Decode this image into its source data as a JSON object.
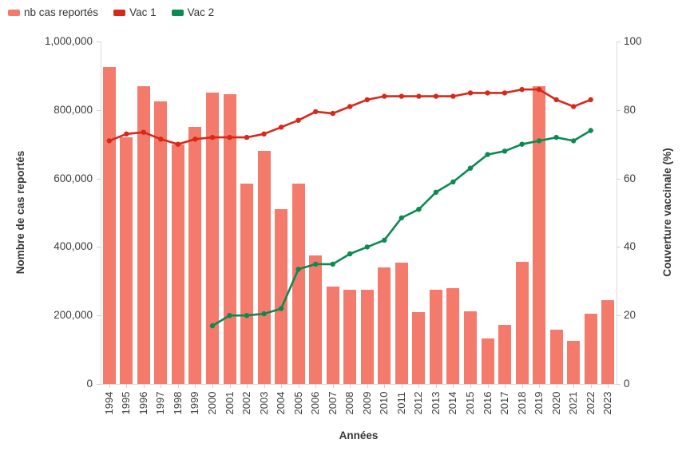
{
  "chart_data": {
    "type": "bar+line (dual y-axis)",
    "title": "",
    "xlabel": "Années",
    "ylabel_left": "Nombre de cas reportés",
    "ylabel_right": "Couverture vaccinale (%)",
    "grid": false,
    "legend_position": "top-left",
    "categories": [
      "1994",
      "1995",
      "1996",
      "1997",
      "1998",
      "1999",
      "2000",
      "2001",
      "2002",
      "2003",
      "2004",
      "2005",
      "2006",
      "2007",
      "2008",
      "2009",
      "2010",
      "2011",
      "2012",
      "2013",
      "2014",
      "2015",
      "2016",
      "2017",
      "2018",
      "2019",
      "2020",
      "2021",
      "2022",
      "2023"
    ],
    "left_axis": {
      "range": [
        0,
        1000000
      ],
      "tick_values": [
        0,
        200000,
        400000,
        600000,
        800000,
        1000000
      ],
      "tick_labels": [
        "0",
        "200,000",
        "400,000",
        "600,000",
        "800,000",
        "1,000,000"
      ]
    },
    "right_axis": {
      "range": [
        0,
        100
      ],
      "tick_values": [
        0,
        20,
        40,
        60,
        80,
        100
      ],
      "tick_labels": [
        "0",
        "20",
        "40",
        "60",
        "80",
        "100"
      ]
    },
    "series": [
      {
        "name": "nb cas reportés",
        "type": "bar",
        "axis": "left",
        "color": "#F47A6C",
        "values": [
          925000,
          720000,
          870000,
          825000,
          700000,
          750000,
          850000,
          845000,
          585000,
          680000,
          510000,
          585000,
          375000,
          285000,
          275000,
          275000,
          340000,
          355000,
          210000,
          275000,
          280000,
          212000,
          132000,
          172000,
          357000,
          870000,
          158000,
          125000,
          205000,
          245000
        ]
      },
      {
        "name": "Vac 1",
        "type": "line",
        "axis": "right",
        "color": "#D7281A",
        "values": [
          71,
          73,
          73.5,
          71.5,
          70,
          71.5,
          72,
          72,
          72,
          73,
          75,
          77,
          79.5,
          79,
          81,
          83,
          84,
          84,
          84,
          84,
          84,
          85,
          85,
          85,
          86,
          86,
          83,
          81,
          83,
          null
        ]
      },
      {
        "name": "Vac 2",
        "type": "line",
        "axis": "right",
        "color": "#0B8A51",
        "values": [
          null,
          null,
          null,
          null,
          null,
          null,
          17,
          20,
          20,
          20.5,
          22,
          33.5,
          35,
          35,
          38,
          40,
          42,
          48.5,
          51,
          56,
          59,
          63,
          67,
          68,
          70,
          71,
          72,
          71,
          74,
          null
        ]
      }
    ]
  }
}
